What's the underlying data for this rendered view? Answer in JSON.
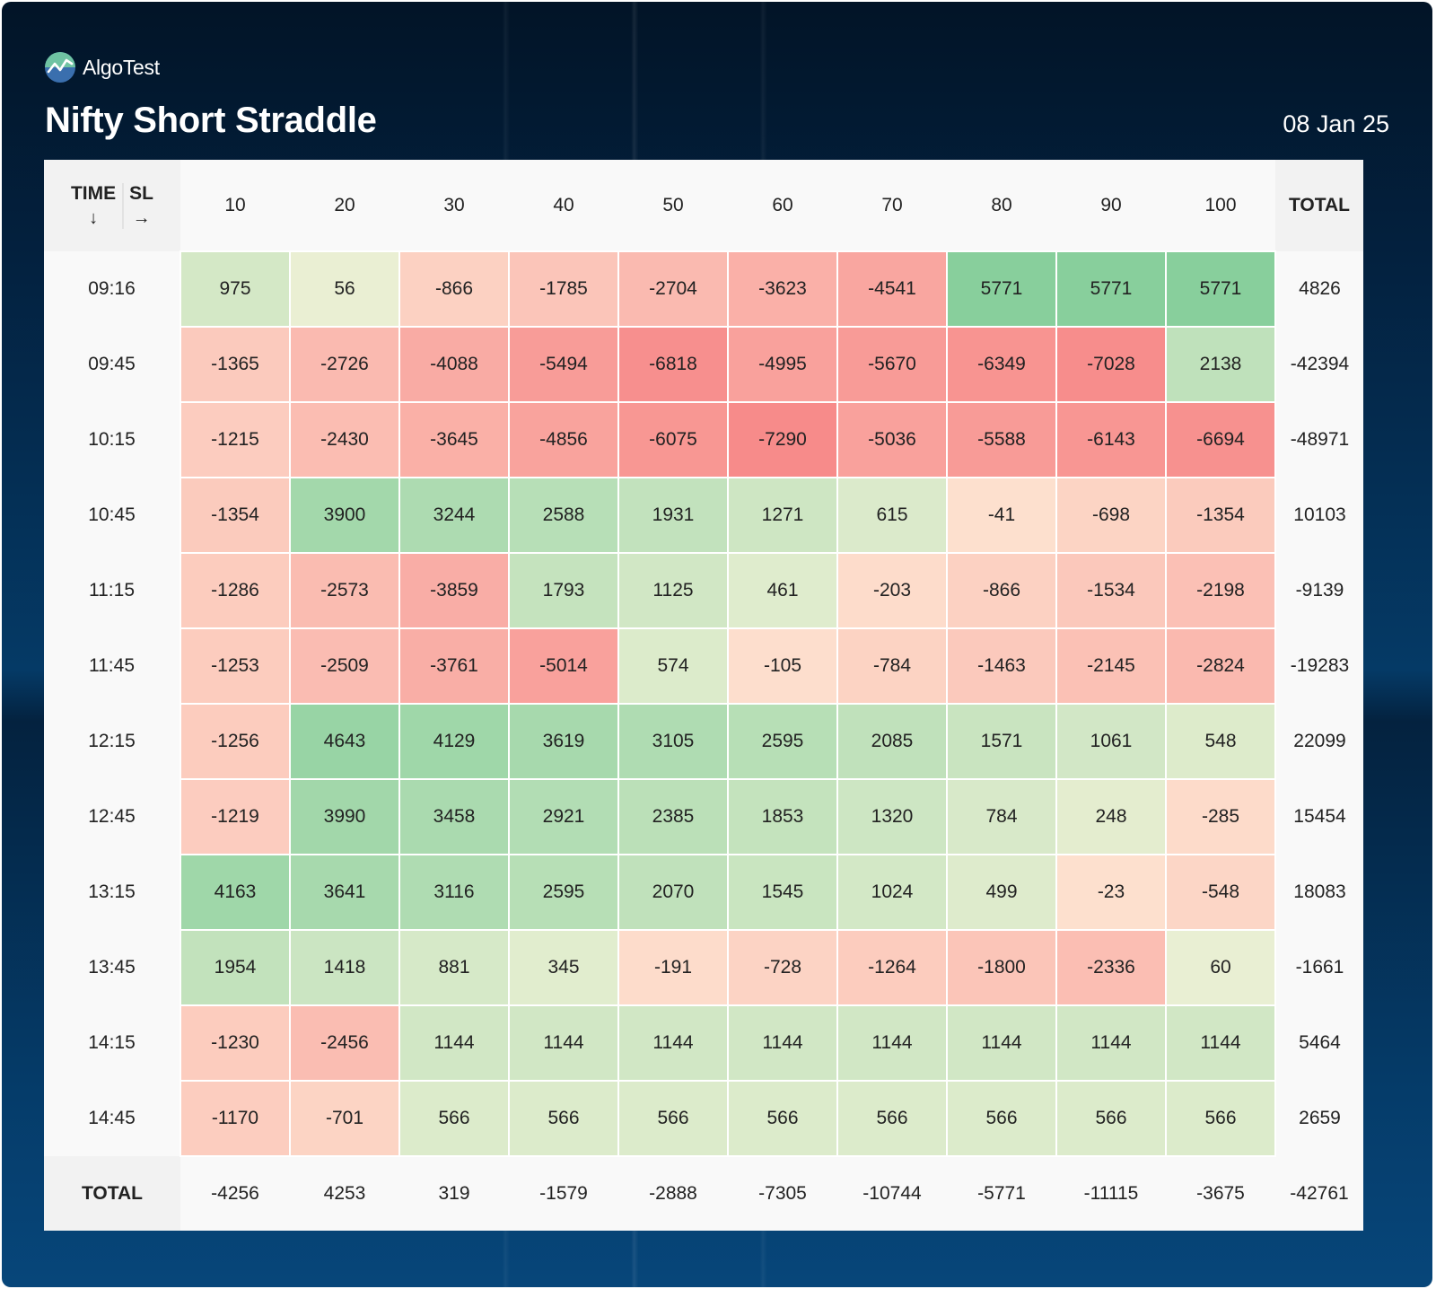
{
  "brand": {
    "name": "AlgoTest"
  },
  "title": "Nifty Short Straddle",
  "date": "08 Jan 25",
  "table": {
    "corner": {
      "left": "TIME",
      "right": "SL",
      "left_arrow": "↓",
      "right_arrow": "→"
    },
    "total_label": "TOTAL"
  },
  "colors": {
    "positive_strong": "#88cf9c",
    "negative_strong": "#f78b8a",
    "neutral": "#f2f2d4",
    "background": "#03213f"
  },
  "chart_data": {
    "type": "heatmap",
    "title": "Nifty Short Straddle",
    "xlabel": "SL",
    "ylabel": "TIME",
    "columns": [
      "10",
      "20",
      "30",
      "40",
      "50",
      "60",
      "70",
      "80",
      "90",
      "100"
    ],
    "rows": [
      "09:16",
      "09:45",
      "10:15",
      "10:45",
      "11:15",
      "11:45",
      "12:15",
      "12:45",
      "13:15",
      "13:45",
      "14:15",
      "14:45"
    ],
    "values": [
      [
        975,
        56,
        -866,
        -1785,
        -2704,
        -3623,
        -4541,
        5771,
        5771,
        5771
      ],
      [
        -1365,
        -2726,
        -4088,
        -5494,
        -6818,
        -4995,
        -5670,
        -6349,
        -7028,
        2138
      ],
      [
        -1215,
        -2430,
        -3645,
        -4856,
        -6075,
        -7290,
        -5036,
        -5588,
        -6143,
        -6694
      ],
      [
        -1354,
        3900,
        3244,
        2588,
        1931,
        1271,
        615,
        -41,
        -698,
        -1354
      ],
      [
        -1286,
        -2573,
        -3859,
        1793,
        1125,
        461,
        -203,
        -866,
        -1534,
        -2198
      ],
      [
        -1253,
        -2509,
        -3761,
        -5014,
        574,
        -105,
        -784,
        -1463,
        -2145,
        -2824
      ],
      [
        -1256,
        4643,
        4129,
        3619,
        3105,
        2595,
        2085,
        1571,
        1061,
        548
      ],
      [
        -1219,
        3990,
        3458,
        2921,
        2385,
        1853,
        1320,
        784,
        248,
        -285
      ],
      [
        4163,
        3641,
        3116,
        2595,
        2070,
        1545,
        1024,
        499,
        -23,
        -548
      ],
      [
        1954,
        1418,
        881,
        345,
        -191,
        -728,
        -1264,
        -1800,
        -2336,
        60
      ],
      [
        -1230,
        -2456,
        1144,
        1144,
        1144,
        1144,
        1144,
        1144,
        1144,
        1144
      ],
      [
        -1170,
        -701,
        566,
        566,
        566,
        566,
        566,
        566,
        566,
        566
      ]
    ],
    "row_totals": [
      4826,
      -42394,
      -48971,
      10103,
      -9139,
      -19283,
      22099,
      15454,
      18083,
      -1661,
      5464,
      2659
    ],
    "column_totals": [
      -4256,
      4253,
      319,
      -1579,
      -2888,
      -7305,
      -10744,
      -5771,
      -11115,
      -3675
    ],
    "grand_total": -42761
  }
}
